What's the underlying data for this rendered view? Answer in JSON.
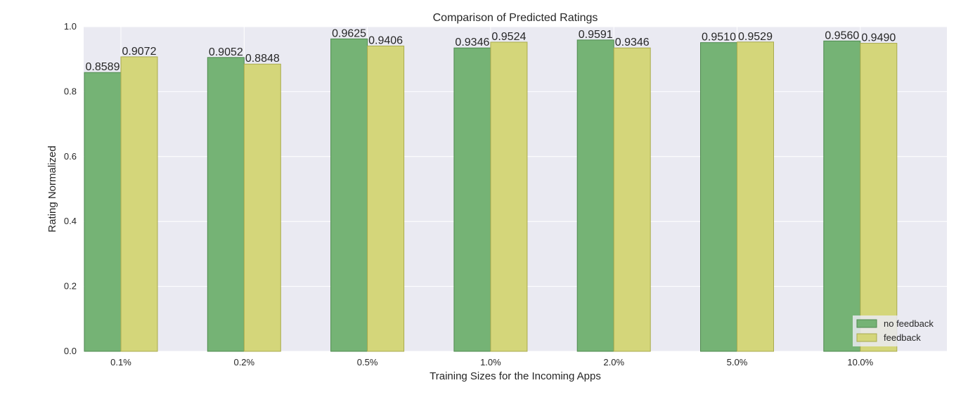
{
  "chart_data": {
    "type": "bar",
    "title": "Comparison of Predicted Ratings",
    "xlabel": "Training Sizes for the Incoming Apps",
    "ylabel": "Rating Normalized",
    "categories": [
      "0.1%",
      "0.2%",
      "0.5%",
      "1.0%",
      "2.0%",
      "5.0%",
      "10.0%"
    ],
    "series": [
      {
        "name": "no feedback",
        "color": "#75b375",
        "edge": "#4e8a4e",
        "values": [
          0.8589,
          0.9052,
          0.9625,
          0.9346,
          0.9591,
          0.951,
          0.956
        ],
        "labels": [
          "0.8589",
          "0.9052",
          "0.9625",
          "0.9346",
          "0.9591",
          "0.9510",
          "0.9560"
        ]
      },
      {
        "name": "feedback",
        "color": "#d4d67a",
        "edge": "#a9ab4e",
        "values": [
          0.9072,
          0.8848,
          0.9406,
          0.9524,
          0.9346,
          0.9529,
          0.949
        ],
        "labels": [
          "0.9072",
          "0.8848",
          "0.9406",
          "0.9524",
          "0.9346",
          "0.9529",
          "0.9490"
        ]
      }
    ],
    "ylim": [
      0.0,
      1.0
    ],
    "yticks": [
      0.0,
      0.2,
      0.4,
      0.6,
      0.8,
      1.0
    ],
    "ytick_labels": [
      "0.0",
      "0.2",
      "0.4",
      "0.6",
      "0.8",
      "1.0"
    ],
    "grid": true,
    "legend_position": "bottom-right",
    "background_color": "#eaeaf2",
    "grid_color": "#ffffff"
  }
}
